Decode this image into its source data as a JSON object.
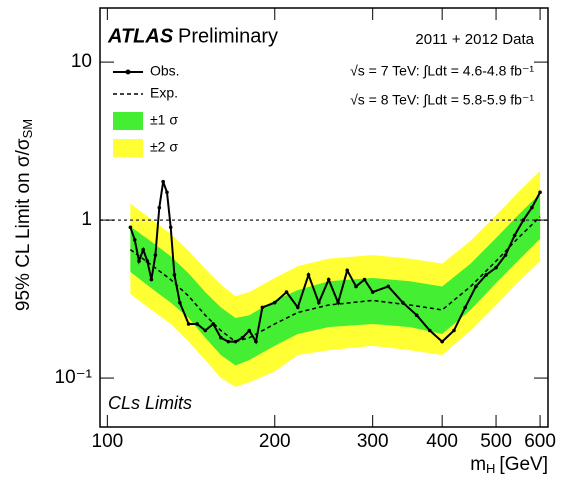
{
  "chart_data": {
    "type": "line",
    "logx": true,
    "logy": true,
    "title": "ATLAS",
    "subtitle": "Preliminary",
    "data_label": "2011 + 2012 Data",
    "lumi_7": "√s = 7 TeV: ∫Ldt = 4.6-4.8 fb⁻¹",
    "lumi_8": "√s = 8 TeV: ∫Ldt = 5.8-5.9 fb⁻¹",
    "method": "CLs Limits",
    "ylabel": "95% CL Limit on σ/σ",
    "ylabel_sub": "SM",
    "xlabel": "m",
    "xlabel_sub": "H",
    "xlabel_unit": "[GeV]",
    "xlim": [
      97,
      620
    ],
    "ylim": [
      0.049,
      22
    ],
    "xticks": [
      100,
      200,
      300,
      400,
      500,
      600
    ],
    "yticks": [
      {
        "value": 0.1,
        "label": "10⁻¹"
      },
      1,
      10
    ],
    "ref_line": 1,
    "x": [
      110,
      120,
      130,
      140,
      150,
      160,
      170,
      180,
      200,
      220,
      250,
      300,
      350,
      400,
      450,
      500,
      550,
      600
    ],
    "series": [
      {
        "name": "Obs.",
        "color": "#000000",
        "x": [
          110,
          112,
          114,
          116,
          118,
          120,
          122,
          124,
          126,
          128,
          130,
          132,
          135,
          140,
          145,
          150,
          155,
          160,
          165,
          170,
          175,
          180,
          185,
          190,
          200,
          210,
          220,
          230,
          240,
          250,
          260,
          270,
          280,
          290,
          300,
          320,
          340,
          360,
          380,
          400,
          420,
          440,
          460,
          480,
          500,
          520,
          540,
          560,
          580,
          600
        ],
        "values": [
          0.9,
          0.75,
          0.55,
          0.65,
          0.55,
          0.42,
          0.6,
          1.2,
          1.75,
          1.5,
          0.9,
          0.45,
          0.3,
          0.22,
          0.22,
          0.2,
          0.22,
          0.18,
          0.17,
          0.17,
          0.18,
          0.2,
          0.17,
          0.28,
          0.3,
          0.35,
          0.28,
          0.45,
          0.3,
          0.42,
          0.3,
          0.48,
          0.38,
          0.42,
          0.35,
          0.38,
          0.3,
          0.25,
          0.2,
          0.17,
          0.2,
          0.28,
          0.38,
          0.45,
          0.5,
          0.6,
          0.8,
          1.0,
          1.2,
          1.5
        ]
      },
      {
        "name": "Exp.",
        "color": "#000000",
        "dashed": true,
        "values": [
          0.65,
          0.52,
          0.42,
          0.33,
          0.25,
          0.2,
          0.17,
          0.18,
          0.22,
          0.26,
          0.29,
          0.31,
          0.29,
          0.27,
          0.38,
          0.55,
          0.78,
          1.05
        ]
      }
    ],
    "bands": [
      {
        "name": "±2 σ",
        "color": "#ffff33",
        "upper": [
          1.27,
          1.01,
          0.82,
          0.64,
          0.49,
          0.39,
          0.33,
          0.35,
          0.43,
          0.51,
          0.57,
          0.6,
          0.57,
          0.53,
          0.74,
          1.07,
          1.52,
          2.05
        ],
        "lower": [
          0.34,
          0.27,
          0.22,
          0.17,
          0.13,
          0.1,
          0.088,
          0.094,
          0.11,
          0.14,
          0.15,
          0.16,
          0.15,
          0.14,
          0.2,
          0.29,
          0.41,
          0.55
        ]
      },
      {
        "name": "±1 σ",
        "color": "#44ee33",
        "upper": [
          0.91,
          0.73,
          0.59,
          0.46,
          0.35,
          0.28,
          0.24,
          0.25,
          0.31,
          0.36,
          0.41,
          0.43,
          0.41,
          0.38,
          0.53,
          0.77,
          1.09,
          1.47
        ],
        "lower": [
          0.47,
          0.37,
          0.3,
          0.24,
          0.18,
          0.14,
          0.12,
          0.13,
          0.16,
          0.19,
          0.21,
          0.22,
          0.21,
          0.19,
          0.27,
          0.4,
          0.56,
          0.76
        ]
      }
    ]
  }
}
